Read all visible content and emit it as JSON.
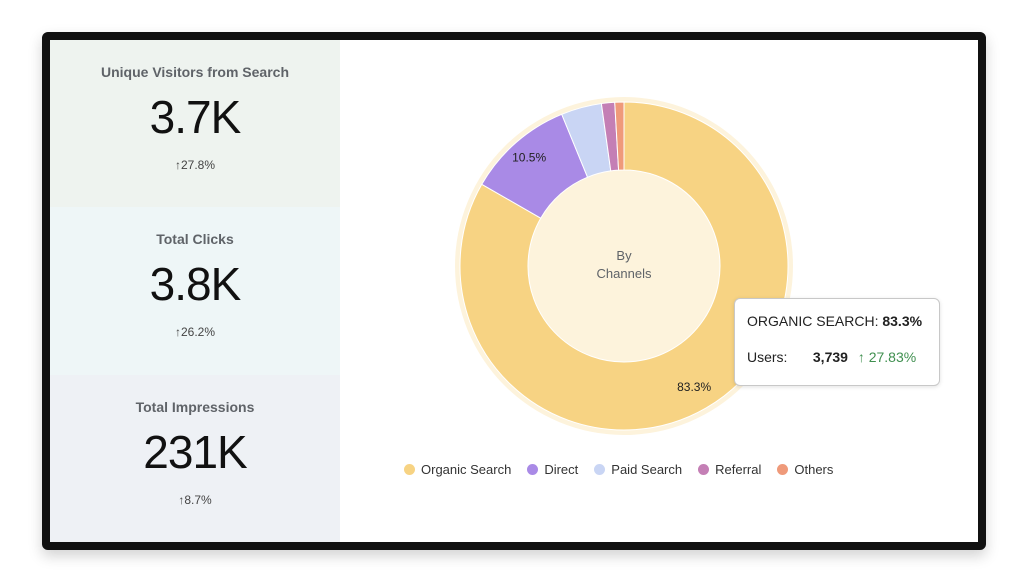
{
  "metrics": [
    {
      "label": "Unique Visitors from Search",
      "value": "3.7K",
      "change": "27.8%"
    },
    {
      "label": "Total Clicks",
      "value": "3.8K",
      "change": "26.2%"
    },
    {
      "label": "Total Impressions",
      "value": "231K",
      "change": "8.7%"
    }
  ],
  "chart_data": {
    "type": "pie",
    "donut": true,
    "center_label": [
      "By",
      "Channels"
    ],
    "categories": [
      "Organic Search",
      "Direct",
      "Paid Search",
      "Referral",
      "Others"
    ],
    "values": [
      83.3,
      10.5,
      4.0,
      1.3,
      0.9
    ],
    "colors": [
      "#f7d383",
      "#a98ae6",
      "#c9d5f4",
      "#c47fb5",
      "#ef9a7a"
    ],
    "data_labels": [
      "83.3%",
      "10.5%",
      "",
      "",
      ""
    ],
    "highlighted": "Organic Search",
    "legend_position": "bottom"
  },
  "tooltip": {
    "title": "ORGANIC SEARCH:",
    "percent": "83.3%",
    "users_label": "Users:",
    "users_value": "3,739",
    "change": "27.83%"
  }
}
